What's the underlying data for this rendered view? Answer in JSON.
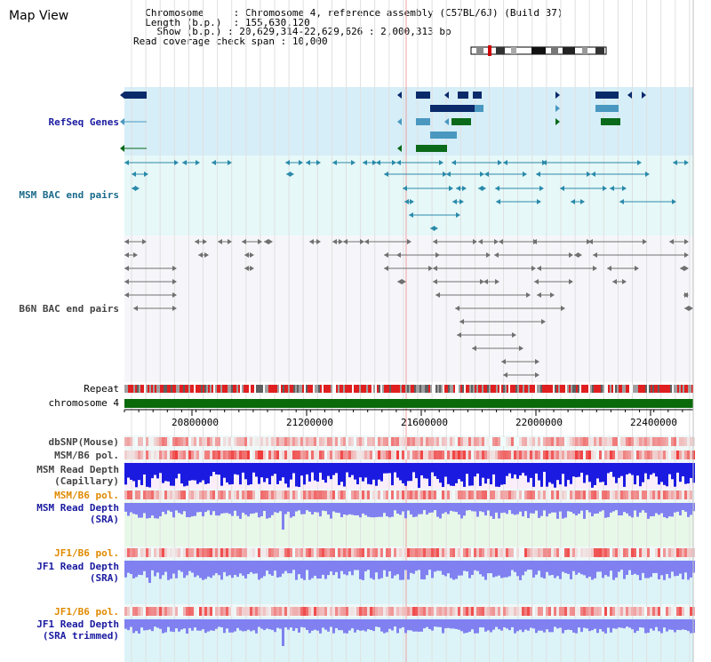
{
  "page": {
    "title": "Map View"
  },
  "info": {
    "chromosome_key": "Chromosome",
    "chromosome_val": "Chromosome 4, reference assembly (C57BL/6J) (Build 37)",
    "length_key": "Length (b.p.)",
    "length_val": "155,630,120",
    "show_key": "Show (b.p.)",
    "show_val": "20,629,314-22,629,626 : 2,000,313 bp",
    "coverage_key": "Read coverage check span",
    "coverage_val": "10,000"
  },
  "tracks": {
    "refseq": "RefSeq Genes",
    "msm_bac": "MSM BAC end pairs",
    "b6n_bac": "B6N BAC end pairs",
    "repeat": "Repeat",
    "chromosome": "chromosome 4",
    "dbsnp": "dbSNP(Mouse)",
    "msm_b6_pol_1": "MSM/B6 pol.",
    "msm_read_depth_cap_1": "MSM Read Depth",
    "msm_read_depth_cap_2": "(Capillary)",
    "msm_b6_pol_2": "MSM/B6 pol.",
    "msm_read_depth_sra_1": "MSM Read Depth",
    "msm_read_depth_sra_2": "(SRA)",
    "jf1_b6_pol_1": "JF1/B6 pol.",
    "jf1_read_depth_sra_1": "JF1 Read Depth",
    "jf1_read_depth_sra_2": "(SRA)",
    "jf1_b6_pol_2": "JF1/B6 pol.",
    "jf1_read_depth_trim_1": "JF1 Read Depth",
    "jf1_read_depth_trim_2": "(SRA trimmed)"
  },
  "axis": {
    "ticks": [
      "20800000",
      "21200000",
      "21600000",
      "22000000",
      "22400000"
    ]
  },
  "colors": {
    "refseq_bg": "#d6eef8",
    "bac_bg": "#e6f8f8",
    "b6n_bg": "#f4f4fa",
    "gene_dark": "#0a2a6a",
    "gene_mid": "#4a98c0",
    "gene_green": "#0a6a1a",
    "bac_teal": "#2a8aaa",
    "bac_gray": "#707070",
    "chrom_green": "#0a6a0a",
    "depth_blue": "#1a1ae0",
    "depth_light": "#8080f0"
  },
  "icons": {
    "ideogram": "chromosome-ideogram-icon"
  }
}
